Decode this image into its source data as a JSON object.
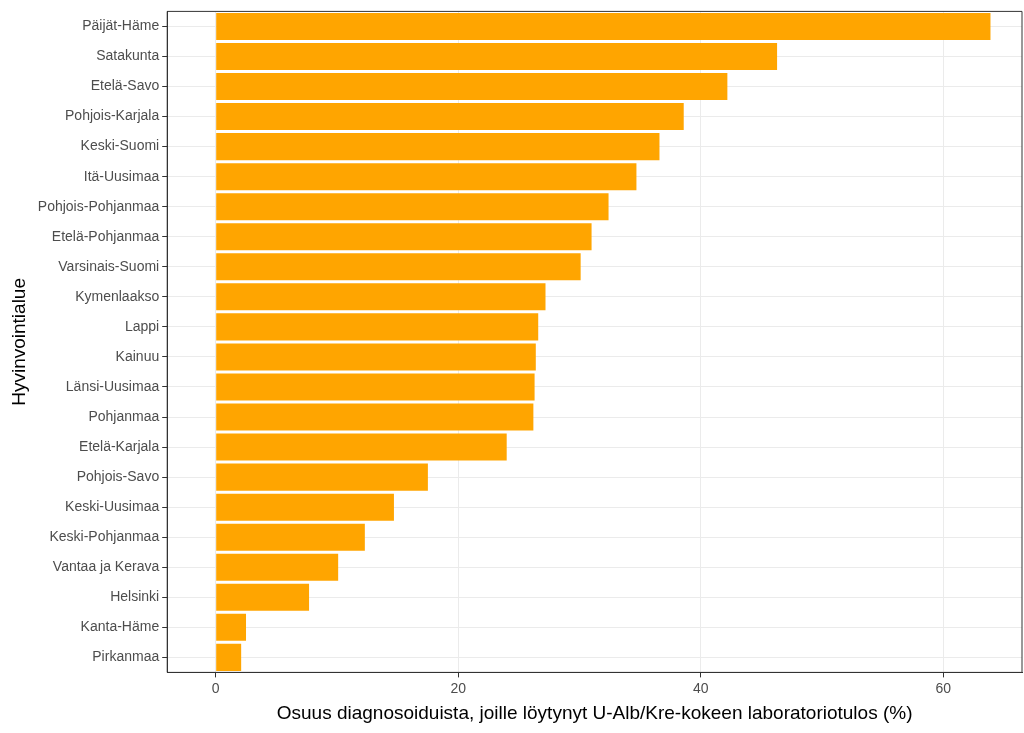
{
  "chart_data": {
    "type": "bar",
    "orientation": "horizontal",
    "xlabel": "Osuus diagnosoiduista, joille löytynyt U-Alb/Kre-kokeen laboratoriotulos (%)",
    "ylabel": "Hyvinvointialue",
    "categories": [
      "Päijät-Häme",
      "Satakunta",
      "Etelä-Savo",
      "Pohjois-Karjala",
      "Keski-Suomi",
      "Itä-Uusimaa",
      "Pohjois-Pohjanmaa",
      "Etelä-Pohjanmaa",
      "Varsinais-Suomi",
      "Kymenlaakso",
      "Lappi",
      "Kainuu",
      "Länsi-Uusimaa",
      "Pohjanmaa",
      "Etelä-Karjala",
      "Pohjois-Savo",
      "Keski-Uusimaa",
      "Keski-Pohjanmaa",
      "Vantaa ja Kerava",
      "Helsinki",
      "Kanta-Häme",
      "Pirkanmaa"
    ],
    "values": [
      63.9,
      46.3,
      42.2,
      38.6,
      36.6,
      34.7,
      32.4,
      31.0,
      30.1,
      27.2,
      26.6,
      26.4,
      26.3,
      26.2,
      24.0,
      17.5,
      14.7,
      12.3,
      10.1,
      7.7,
      2.5,
      2.1
    ],
    "color": "#ffa500",
    "xlim": [
      -4,
      66.5
    ],
    "xticks": [
      0,
      20,
      40,
      60
    ],
    "grid": true
  }
}
